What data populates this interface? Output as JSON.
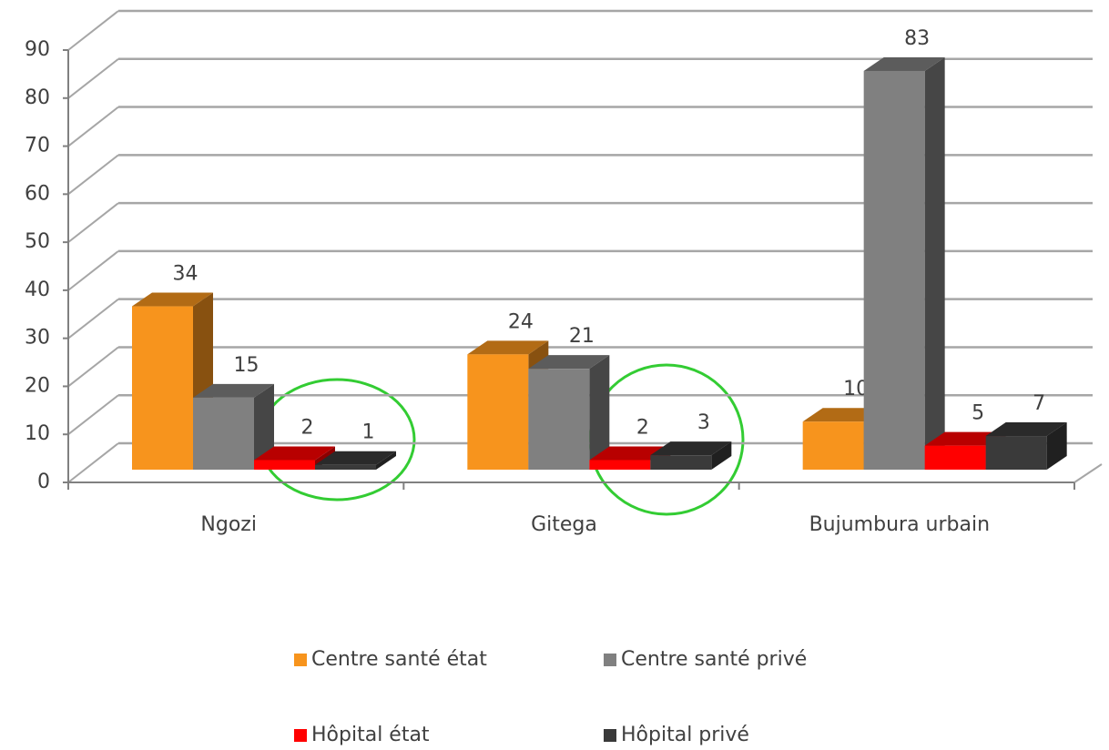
{
  "chart_data": {
    "type": "bar3d",
    "categories": [
      "Ngozi",
      "Gitega",
      "Bujumbura urbain"
    ],
    "series": [
      {
        "name": "Centre santé état",
        "color": "#f7941d",
        "values": [
          34,
          24,
          10
        ]
      },
      {
        "name": "Centre santé privé",
        "color": "#808080",
        "values": [
          15,
          21,
          83
        ]
      },
      {
        "name": "Hôpital état",
        "color": "#ff0000",
        "values": [
          2,
          2,
          5
        ]
      },
      {
        "name": "Hôpital privé",
        "color": "#3a3a3a",
        "values": [
          1,
          3,
          7
        ]
      }
    ],
    "ylim": [
      0,
      90
    ],
    "yticks": [
      0,
      10,
      20,
      30,
      40,
      50,
      60,
      70,
      80,
      90
    ],
    "grid": true,
    "legend": "bottom"
  }
}
